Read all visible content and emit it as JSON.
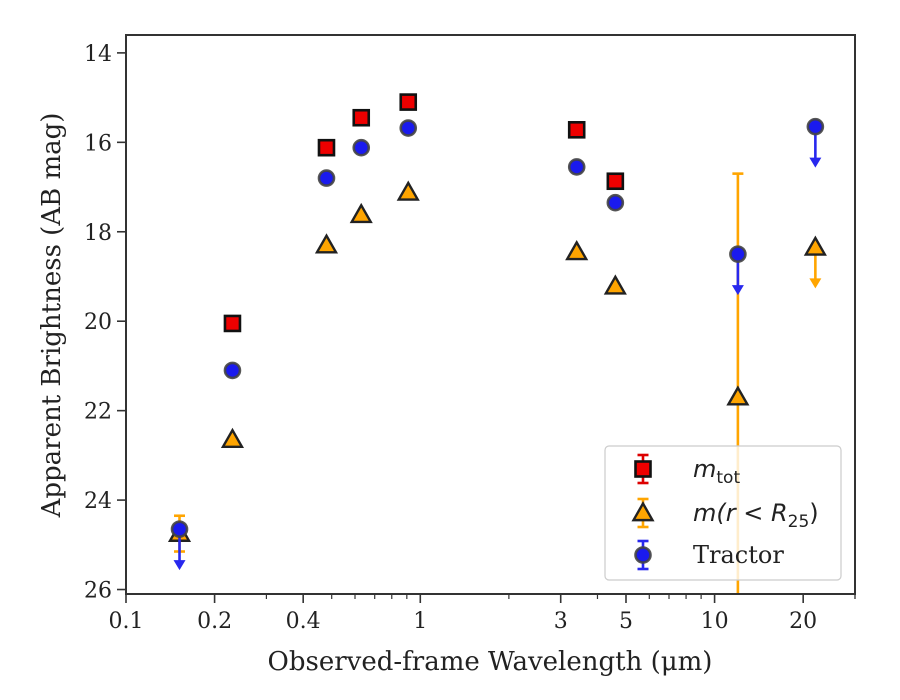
{
  "chart_data": {
    "type": "scatter",
    "xlabel": "Observed-frame Wavelength (μm)",
    "ylabel": "Apparent Brightness (AB mag)",
    "xscale": "log",
    "xlim": [
      0.1,
      30
    ],
    "ylim": [
      26.1,
      13.6
    ],
    "y_inverted": true,
    "xticks": [
      0.1,
      0.2,
      0.4,
      1,
      3,
      5,
      10,
      20
    ],
    "xtick_labels": [
      "0.1",
      "0.2",
      "0.4",
      "1",
      "3",
      "5",
      "10",
      "20"
    ],
    "yticks": [
      14,
      16,
      18,
      20,
      22,
      24,
      26
    ],
    "ytick_labels": [
      "14",
      "16",
      "18",
      "20",
      "22",
      "24",
      "26"
    ],
    "grid": false,
    "legend_position": "bottom-right",
    "series": [
      {
        "key": "mtot",
        "legend_prefix": "m",
        "legend_sub": "tot",
        "marker": "square",
        "color": "#ee0000",
        "errcolor": "#dd0000",
        "points": [
          {
            "x": 0.23,
            "y": 20.05
          },
          {
            "x": 0.48,
            "y": 16.12
          },
          {
            "x": 0.63,
            "y": 15.45
          },
          {
            "x": 0.91,
            "y": 15.1
          },
          {
            "x": 3.4,
            "y": 15.72
          },
          {
            "x": 4.6,
            "y": 16.87
          }
        ]
      },
      {
        "key": "mr25",
        "legend_prefix": "m(r < R",
        "legend_sub": "25",
        "legend_suffix": ")",
        "marker": "triangle",
        "color": "#ffa500",
        "errcolor": "#ffa500",
        "points": [
          {
            "x": 0.152,
            "y": 24.75,
            "err": 0.4
          },
          {
            "x": 0.23,
            "y": 22.65
          },
          {
            "x": 0.48,
            "y": 18.3
          },
          {
            "x": 0.63,
            "y": 17.62
          },
          {
            "x": 0.91,
            "y": 17.12
          },
          {
            "x": 3.4,
            "y": 18.45
          },
          {
            "x": 4.6,
            "y": 19.22
          },
          {
            "x": 12.0,
            "y": 21.7,
            "err_lower": 5.0,
            "err_upper": 4.5
          },
          {
            "x": 22.0,
            "y": 18.35,
            "upper_limit": true
          }
        ]
      },
      {
        "key": "tractor",
        "legend_prefix": "Tractor",
        "marker": "circle",
        "color": "#1a1aee",
        "errcolor": "#2828ee",
        "points": [
          {
            "x": 0.152,
            "y": 24.65,
            "upper_limit": true
          },
          {
            "x": 0.23,
            "y": 21.1
          },
          {
            "x": 0.48,
            "y": 16.8
          },
          {
            "x": 0.63,
            "y": 16.12
          },
          {
            "x": 0.91,
            "y": 15.68
          },
          {
            "x": 3.4,
            "y": 16.55
          },
          {
            "x": 4.6,
            "y": 17.35
          },
          {
            "x": 12.0,
            "y": 18.5,
            "upper_limit": true
          },
          {
            "x": 22.0,
            "y": 15.65,
            "upper_limit": true
          }
        ]
      }
    ]
  }
}
